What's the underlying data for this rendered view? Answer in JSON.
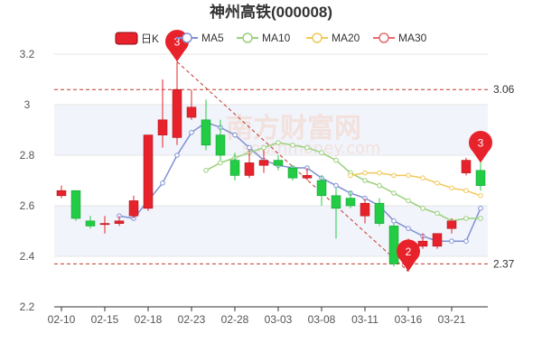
{
  "chart_data": {
    "type": "candlestick",
    "title": "神州高铁(000008)",
    "y_ticks": [
      2.2,
      2.4,
      2.6,
      2.8,
      3.0,
      3.2
    ],
    "y_tick_labels": [
      "2.2",
      "2.4",
      "2.6",
      "2.8",
      "3",
      "3.2"
    ],
    "ylim": [
      2.2,
      3.2
    ],
    "x_tick_labels": [
      "02-10",
      "02-15",
      "02-18",
      "02-23",
      "02-28",
      "03-03",
      "03-08",
      "03-11",
      "03-16",
      "03-21"
    ],
    "dates": [
      "02-10",
      "02-11",
      "02-14",
      "02-15",
      "02-16",
      "02-17",
      "02-18",
      "02-21",
      "02-22",
      "02-23",
      "02-24",
      "02-25",
      "02-28",
      "03-01",
      "03-02",
      "03-03",
      "03-04",
      "03-07",
      "03-08",
      "03-09",
      "03-10",
      "03-11",
      "03-14",
      "03-15",
      "03-16",
      "03-17",
      "03-18",
      "03-21",
      "03-22",
      "03-23"
    ],
    "x_tick_indices": [
      0,
      3,
      6,
      9,
      12,
      15,
      18,
      21,
      24,
      27
    ],
    "candles": [
      {
        "open": 2.64,
        "close": 2.66,
        "high": 2.68,
        "low": 2.63
      },
      {
        "open": 2.66,
        "close": 2.55,
        "high": 2.66,
        "low": 2.54
      },
      {
        "open": 2.54,
        "close": 2.52,
        "high": 2.56,
        "low": 2.51
      },
      {
        "open": 2.53,
        "close": 2.53,
        "high": 2.56,
        "low": 2.49
      },
      {
        "open": 2.53,
        "close": 2.54,
        "high": 2.56,
        "low": 2.52
      },
      {
        "open": 2.56,
        "close": 2.62,
        "high": 2.64,
        "low": 2.55
      },
      {
        "open": 2.59,
        "close": 2.88,
        "high": 2.88,
        "low": 2.58
      },
      {
        "open": 2.88,
        "close": 2.94,
        "high": 3.1,
        "low": 2.83
      },
      {
        "open": 2.87,
        "close": 3.06,
        "high": 3.17,
        "low": 2.84
      },
      {
        "open": 2.95,
        "close": 2.99,
        "high": 3.06,
        "low": 2.94
      },
      {
        "open": 2.94,
        "close": 2.84,
        "high": 3.02,
        "low": 2.82
      },
      {
        "open": 2.88,
        "close": 2.8,
        "high": 2.94,
        "low": 2.78
      },
      {
        "open": 2.78,
        "close": 2.72,
        "high": 2.81,
        "low": 2.7
      },
      {
        "open": 2.72,
        "close": 2.77,
        "high": 2.82,
        "low": 2.71
      },
      {
        "open": 2.76,
        "close": 2.78,
        "high": 2.82,
        "low": 2.73
      },
      {
        "open": 2.78,
        "close": 2.76,
        "high": 2.8,
        "low": 2.74
      },
      {
        "open": 2.75,
        "close": 2.71,
        "high": 2.76,
        "low": 2.7
      },
      {
        "open": 2.71,
        "close": 2.72,
        "high": 2.75,
        "low": 2.7
      },
      {
        "open": 2.7,
        "close": 2.64,
        "high": 2.72,
        "low": 2.6
      },
      {
        "open": 2.64,
        "close": 2.59,
        "high": 2.67,
        "low": 2.47
      },
      {
        "open": 2.63,
        "close": 2.6,
        "high": 2.66,
        "low": 2.59
      },
      {
        "open": 2.56,
        "close": 2.61,
        "high": 2.63,
        "low": 2.53
      },
      {
        "open": 2.61,
        "close": 2.53,
        "high": 2.63,
        "low": 2.52
      },
      {
        "open": 2.52,
        "close": 2.37,
        "high": 2.53,
        "low": 2.36
      },
      {
        "open": 2.41,
        "close": 2.45,
        "high": 2.47,
        "low": 2.34
      },
      {
        "open": 2.44,
        "close": 2.46,
        "high": 2.49,
        "low": 2.43
      },
      {
        "open": 2.44,
        "close": 2.49,
        "high": 2.49,
        "low": 2.43
      },
      {
        "open": 2.51,
        "close": 2.54,
        "high": 2.55,
        "low": 2.49
      },
      {
        "open": 2.73,
        "close": 2.78,
        "high": 2.79,
        "low": 2.72
      },
      {
        "open": 2.74,
        "close": 2.68,
        "high": 2.86,
        "low": 2.66
      }
    ],
    "ma_series": [
      {
        "name": "MA5",
        "color": "#7f91d4",
        "values": [
          null,
          null,
          null,
          null,
          2.56,
          2.55,
          2.62,
          2.69,
          2.8,
          2.89,
          2.93,
          2.91,
          2.88,
          2.83,
          2.78,
          2.76,
          2.75,
          2.75,
          2.71,
          2.68,
          2.65,
          2.63,
          2.6,
          2.54,
          2.51,
          2.48,
          2.46,
          2.46,
          2.46,
          2.59
        ]
      },
      {
        "name": "MA10",
        "color": "#9ad07a",
        "values": [
          null,
          null,
          null,
          null,
          null,
          null,
          null,
          null,
          null,
          null,
          2.74,
          2.77,
          2.79,
          2.81,
          2.83,
          2.85,
          2.84,
          2.83,
          2.81,
          2.78,
          2.73,
          2.7,
          2.68,
          2.65,
          2.62,
          2.59,
          2.57,
          2.54,
          2.55,
          2.55
        ]
      },
      {
        "name": "MA20",
        "color": "#f0c95a",
        "values": [
          null,
          null,
          null,
          null,
          null,
          null,
          null,
          null,
          null,
          null,
          null,
          null,
          null,
          null,
          null,
          null,
          null,
          null,
          null,
          null,
          2.72,
          2.73,
          2.73,
          2.72,
          2.72,
          2.71,
          2.69,
          2.67,
          2.66,
          2.64
        ]
      },
      {
        "name": "MA30",
        "color": "#e86b6b",
        "values": []
      }
    ],
    "legend": [
      {
        "label": "日K",
        "kind": "candle",
        "color": "#e8222b"
      },
      {
        "label": "MA5",
        "kind": "line",
        "color": "#7f91d4"
      },
      {
        "label": "MA10",
        "kind": "line",
        "color": "#9ad07a"
      },
      {
        "label": "MA20",
        "kind": "line",
        "color": "#f0c95a"
      },
      {
        "label": "MA30",
        "kind": "line",
        "color": "#e86b6b"
      }
    ],
    "reference_lines": [
      {
        "value": 3.06,
        "label": "3.06"
      },
      {
        "value": 2.37,
        "label": "2.37"
      }
    ],
    "markers": [
      {
        "label": "3",
        "index": 8,
        "value": 3.17
      },
      {
        "label": "2",
        "index": 24,
        "value": 2.34
      },
      {
        "label": "3",
        "index": 29,
        "value": 2.77
      }
    ],
    "trend_line": {
      "from_index": 8,
      "from_value": 3.17,
      "to_index": 24,
      "to_value": 2.34
    },
    "colors": {
      "up": "#e8222b",
      "down": "#22cc44",
      "grid": "#e6e6e6",
      "band": "#f2f4fb",
      "ref_line": "#c0392b",
      "pin": "#e8222b"
    },
    "watermark": {
      "main": "南方财富网",
      "sub": "southmoney.com"
    }
  }
}
